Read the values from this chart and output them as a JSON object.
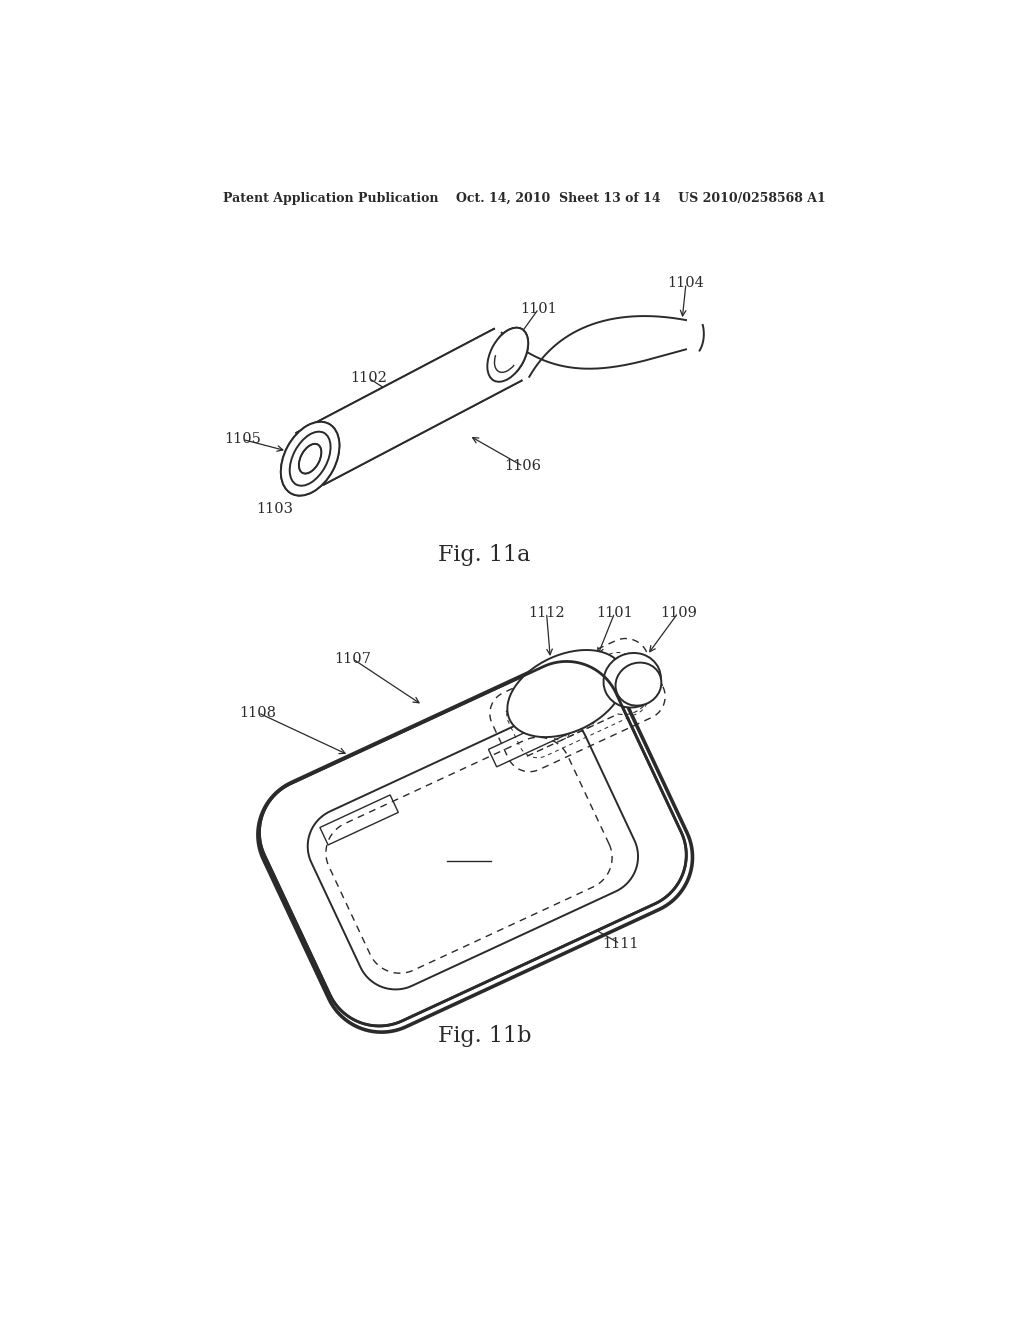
{
  "bg_color": "#ffffff",
  "line_color": "#2a2a2a",
  "fig_width": 10.24,
  "fig_height": 13.2,
  "header": "Patent Application Publication    Oct. 14, 2010  Sheet 13 of 14    US 2010/0258568 A1",
  "fig11a_label": "Fig. 11a",
  "fig11b_label": "Fig. 11b"
}
